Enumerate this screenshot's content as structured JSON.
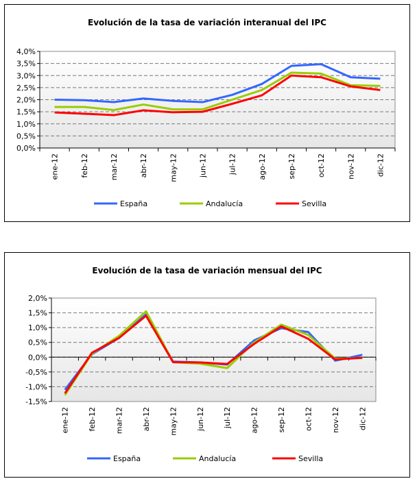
{
  "chart_data": [
    {
      "type": "line",
      "title": "Evolución de la tasa de variación interanual del IPC",
      "categories": [
        "ene-12",
        "feb-12",
        "mar-12",
        "abr-12",
        "may-12",
        "jun-12",
        "jul-12",
        "ago-12",
        "sep-12",
        "oct-12",
        "nov-12",
        "dic-12"
      ],
      "ylim": [
        0,
        4
      ],
      "ytick_step": 0.5,
      "yticks": [
        "0,0%",
        "0,5%",
        "1,0%",
        "1,5%",
        "2,0%",
        "2,5%",
        "3,0%",
        "3,5%",
        "4,0%"
      ],
      "xlabel": "",
      "ylabel": "",
      "grid": true,
      "legend": "bottom",
      "series": [
        {
          "name": "España",
          "color": "#3366ff",
          "values": [
            2.0,
            1.98,
            1.9,
            2.05,
            1.95,
            1.9,
            2.2,
            2.65,
            3.4,
            3.47,
            2.93,
            2.87
          ]
        },
        {
          "name": "Andalucía",
          "color": "#99cc00",
          "values": [
            1.7,
            1.7,
            1.57,
            1.8,
            1.6,
            1.6,
            2.0,
            2.4,
            3.12,
            3.08,
            2.6,
            2.57
          ]
        },
        {
          "name": "Sevilla",
          "color": "#ff0000",
          "values": [
            1.47,
            1.42,
            1.36,
            1.56,
            1.48,
            1.5,
            1.83,
            2.18,
            3.0,
            2.93,
            2.55,
            2.4
          ]
        }
      ]
    },
    {
      "type": "line",
      "title": "Evolución de la tasa de variación mensual del IPC",
      "categories": [
        "ene-12",
        "feb-12",
        "mar-12",
        "abr-12",
        "may-12",
        "jun-12",
        "jul-12",
        "ago-12",
        "sep-12",
        "oct-12",
        "nov-12",
        "dic-12"
      ],
      "ylim": [
        -1.5,
        2
      ],
      "ytick_step": 0.5,
      "yticks": [
        "-1,5%",
        "-1,0%",
        "-0,5%",
        "0,0%",
        "0,5%",
        "1,0%",
        "1,5%",
        "2,0%"
      ],
      "xlabel": "",
      "ylabel": "",
      "grid": true,
      "legend": "bottom",
      "series": [
        {
          "name": "España",
          "color": "#3366ff",
          "values": [
            -1.1,
            0.1,
            0.65,
            1.45,
            -0.15,
            -0.18,
            -0.25,
            0.57,
            0.98,
            0.85,
            -0.12,
            0.08
          ]
        },
        {
          "name": "Andalucía",
          "color": "#99cc00",
          "values": [
            -1.28,
            0.12,
            0.72,
            1.55,
            -0.17,
            -0.22,
            -0.37,
            0.5,
            1.1,
            0.75,
            -0.05,
            -0.03
          ]
        },
        {
          "name": "Sevilla",
          "color": "#ff0000",
          "values": [
            -1.22,
            0.15,
            0.65,
            1.4,
            -0.17,
            -0.18,
            -0.23,
            0.45,
            1.04,
            0.62,
            -0.08,
            -0.02
          ]
        }
      ]
    }
  ]
}
